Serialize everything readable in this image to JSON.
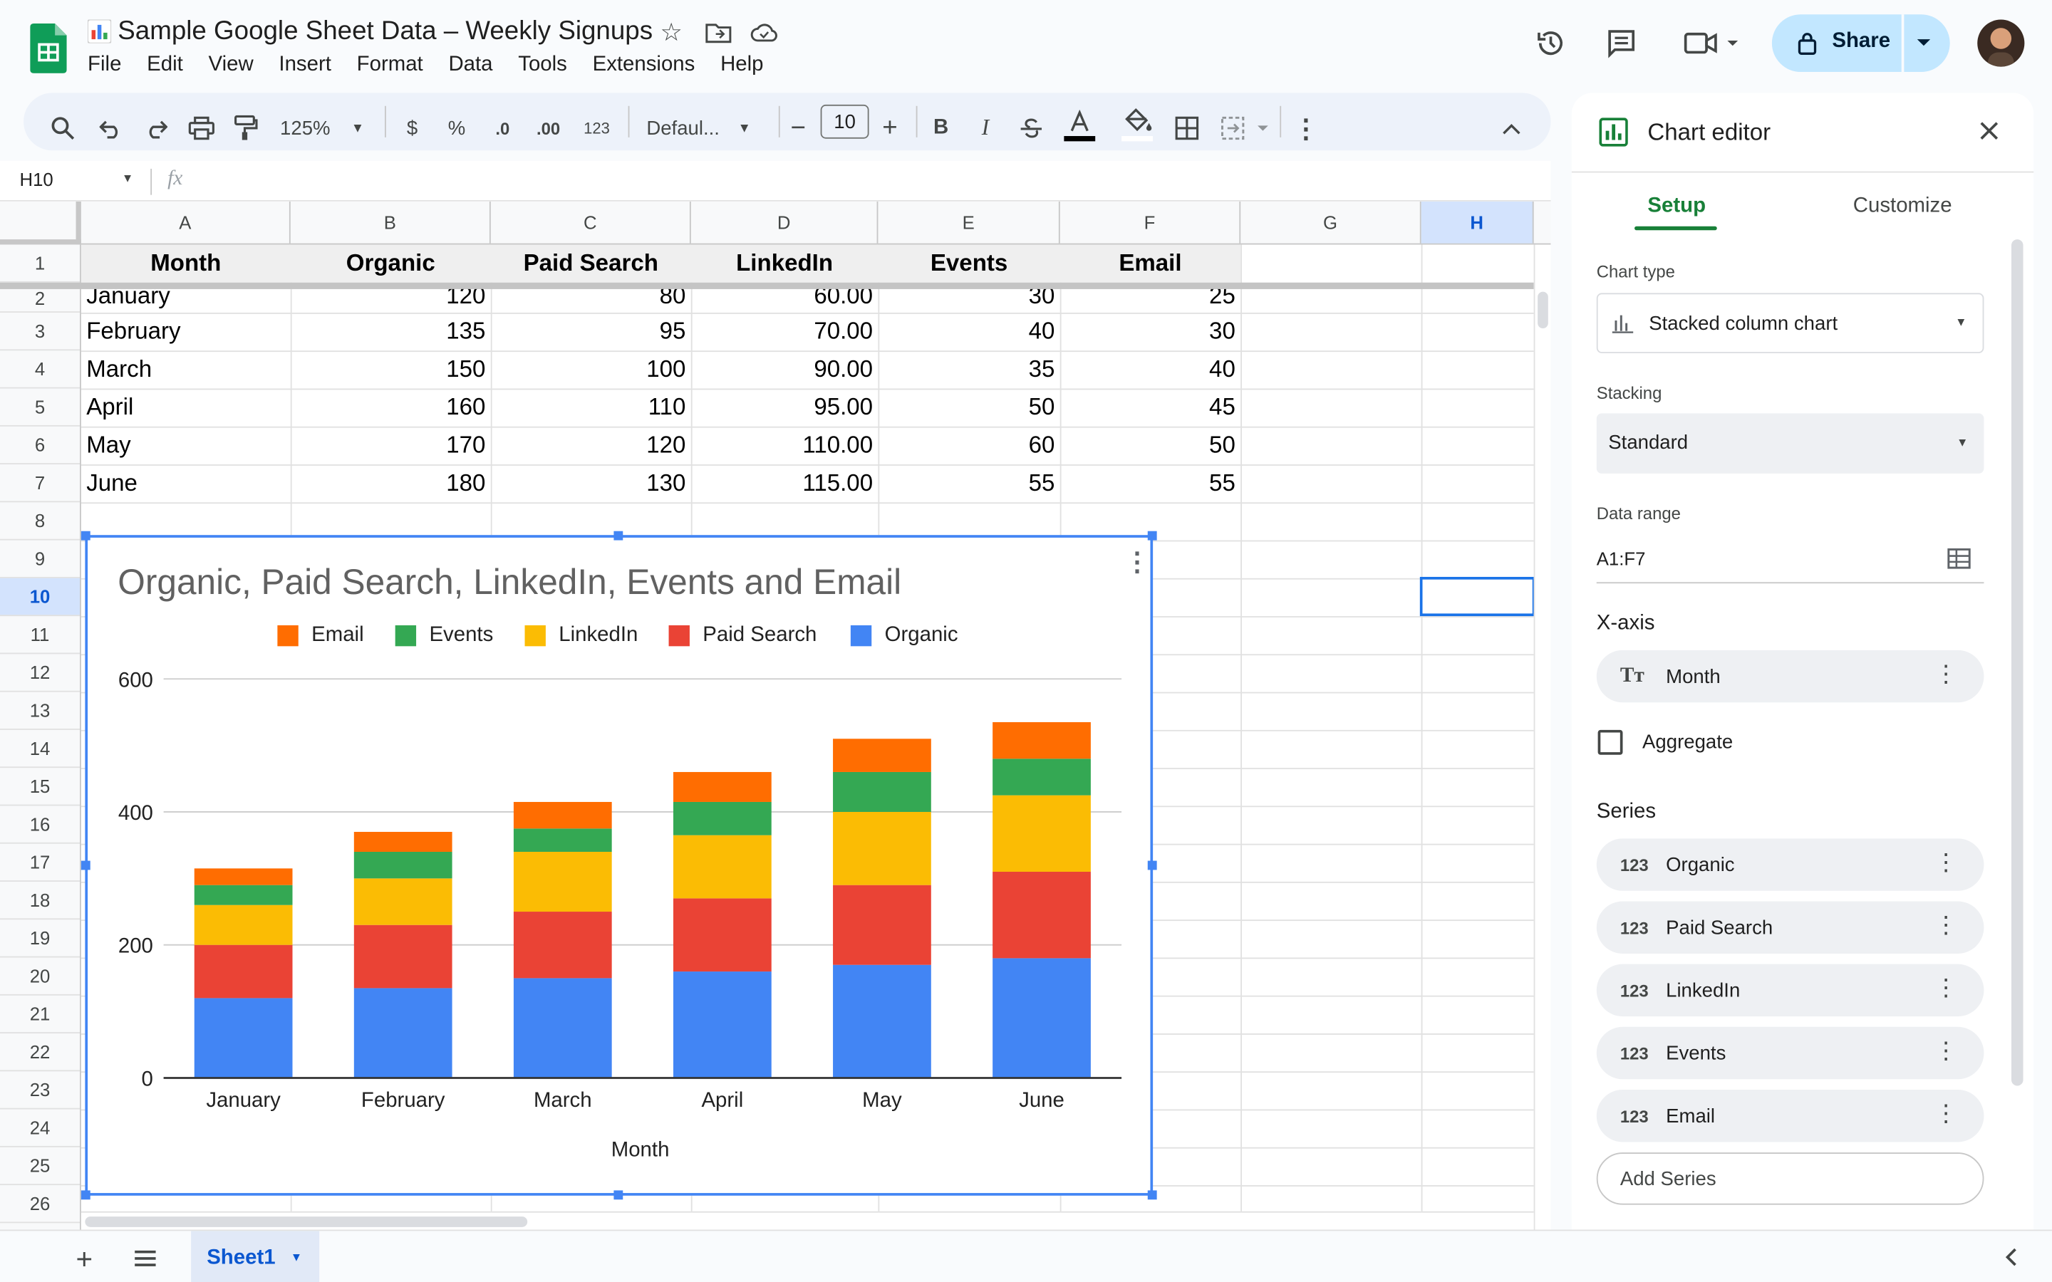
{
  "doc": {
    "title": "Sample Google Sheet Data – Weekly Signups",
    "menu": [
      "File",
      "Edit",
      "View",
      "Insert",
      "Format",
      "Data",
      "Tools",
      "Extensions",
      "Help"
    ],
    "share_label": "Share"
  },
  "toolbar": {
    "zoom": "125%",
    "currency": "$",
    "percent": "%",
    "dec_decrease": ".0",
    "dec_increase": ".00",
    "number_format": "123",
    "font": "Defaul...",
    "font_size": "10",
    "bold": "B",
    "italic": "I"
  },
  "formula_bar": {
    "cell_ref": "H10",
    "fx": "fx"
  },
  "sheet": {
    "columns": [
      "A",
      "B",
      "C",
      "D",
      "E",
      "F",
      "G",
      "H"
    ],
    "rows": [
      "1",
      "2",
      "3",
      "4",
      "5",
      "6",
      "7",
      "8",
      "9",
      "10",
      "11",
      "12",
      "13",
      "14",
      "15",
      "16",
      "17",
      "18",
      "19",
      "20",
      "21",
      "22",
      "23",
      "24",
      "25",
      "26"
    ],
    "headers": [
      "Month",
      "Organic",
      "Paid Search",
      "LinkedIn",
      "Events",
      "Email"
    ],
    "data": [
      [
        "January",
        "120",
        "80",
        "60.00",
        "30",
        "25"
      ],
      [
        "February",
        "135",
        "95",
        "70.00",
        "40",
        "30"
      ],
      [
        "March",
        "150",
        "100",
        "90.00",
        "35",
        "40"
      ],
      [
        "April",
        "160",
        "110",
        "95.00",
        "50",
        "45"
      ],
      [
        "May",
        "170",
        "120",
        "110.00",
        "60",
        "50"
      ],
      [
        "June",
        "180",
        "130",
        "115.00",
        "55",
        "55"
      ]
    ],
    "tab": "Sheet1"
  },
  "chart_data": {
    "type": "bar",
    "stacked": true,
    "title": "Organic, Paid Search, LinkedIn, Events and Email",
    "xlabel": "Month",
    "ylabel": "",
    "ylim": [
      0,
      600
    ],
    "yticks": [
      0,
      200,
      400,
      600
    ],
    "grid": true,
    "legend_position": "top",
    "categories": [
      "January",
      "February",
      "March",
      "April",
      "May",
      "June"
    ],
    "series": [
      {
        "name": "Organic",
        "color": "#4285f4",
        "values": [
          120,
          135,
          150,
          160,
          170,
          180
        ]
      },
      {
        "name": "Paid Search",
        "color": "#ea4335",
        "values": [
          80,
          95,
          100,
          110,
          120,
          130
        ]
      },
      {
        "name": "LinkedIn",
        "color": "#fbbc04",
        "values": [
          60,
          70,
          90,
          95,
          110,
          115
        ]
      },
      {
        "name": "Events",
        "color": "#34a853",
        "values": [
          30,
          40,
          35,
          50,
          60,
          55
        ]
      },
      {
        "name": "Email",
        "color": "#ff6d01",
        "values": [
          25,
          30,
          40,
          45,
          50,
          55
        ]
      }
    ],
    "legend_order": [
      "Email",
      "Events",
      "LinkedIn",
      "Paid Search",
      "Organic"
    ]
  },
  "editor": {
    "title": "Chart editor",
    "tabs": [
      "Setup",
      "Customize"
    ],
    "chart_type_label": "Chart type",
    "chart_type_value": "Stacked column chart",
    "stacking_label": "Stacking",
    "stacking_value": "Standard",
    "data_range_label": "Data range",
    "data_range_value": "A1:F7",
    "xaxis_label": "X-axis",
    "xaxis_value": "Month",
    "aggregate_label": "Aggregate",
    "series_label": "Series",
    "series_items": [
      "Organic",
      "Paid Search",
      "LinkedIn",
      "Events",
      "Email"
    ],
    "series_icon": "123",
    "add_series": "Add Series"
  }
}
